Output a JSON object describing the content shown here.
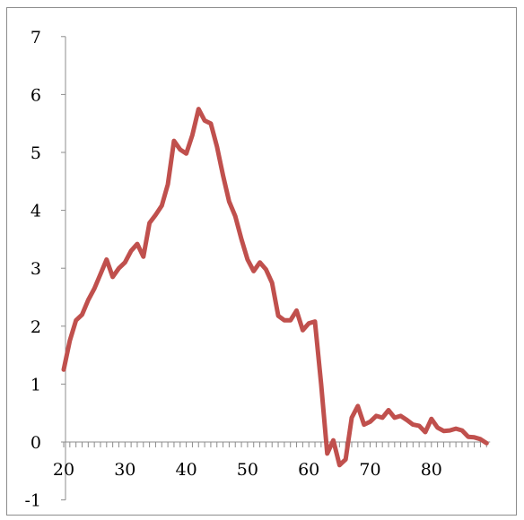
{
  "chart_data": {
    "type": "line",
    "title": "",
    "xlabel": "",
    "ylabel": "",
    "xlim": [
      20,
      89
    ],
    "ylim": [
      -1,
      7
    ],
    "x_ticks": [
      20,
      30,
      40,
      50,
      60,
      70,
      80
    ],
    "y_ticks": [
      -1,
      0,
      1,
      2,
      3,
      4,
      5,
      6,
      7
    ],
    "grid": false,
    "legend": "none",
    "line_color": "#c0504d",
    "series": [
      {
        "x": [
          20,
          21,
          22,
          23,
          24,
          25,
          26,
          27,
          28,
          29,
          30,
          31,
          32,
          33,
          34,
          35,
          36,
          37,
          38,
          39,
          40,
          41,
          42,
          43,
          44,
          45,
          46,
          47,
          48,
          49,
          50,
          51,
          52,
          53,
          54,
          55,
          56,
          57,
          58,
          59,
          60,
          61,
          62,
          63,
          64,
          65,
          66,
          67,
          68,
          69,
          70,
          71,
          72,
          73,
          74,
          75,
          76,
          77,
          78,
          79,
          80,
          81,
          82,
          83,
          84,
          85,
          86,
          87,
          88,
          89
        ],
        "values": [
          1.25,
          1.75,
          2.1,
          2.2,
          2.45,
          2.65,
          2.9,
          3.15,
          2.85,
          3.0,
          3.1,
          3.3,
          3.42,
          3.2,
          3.78,
          3.92,
          4.08,
          4.45,
          5.2,
          5.05,
          4.98,
          5.3,
          5.75,
          5.55,
          5.5,
          5.1,
          4.6,
          4.15,
          3.9,
          3.5,
          3.15,
          2.95,
          3.1,
          2.98,
          2.75,
          2.18,
          2.1,
          2.1,
          2.27,
          1.93,
          2.05,
          2.08,
          1.0,
          -0.2,
          0.03,
          -0.4,
          -0.3,
          0.42,
          0.62,
          0.3,
          0.35,
          0.45,
          0.42,
          0.55,
          0.42,
          0.45,
          0.38,
          0.3,
          0.28,
          0.17,
          0.4,
          0.25,
          0.19,
          0.2,
          0.23,
          0.2,
          0.09,
          0.08,
          0.05,
          -0.02
        ]
      }
    ]
  }
}
